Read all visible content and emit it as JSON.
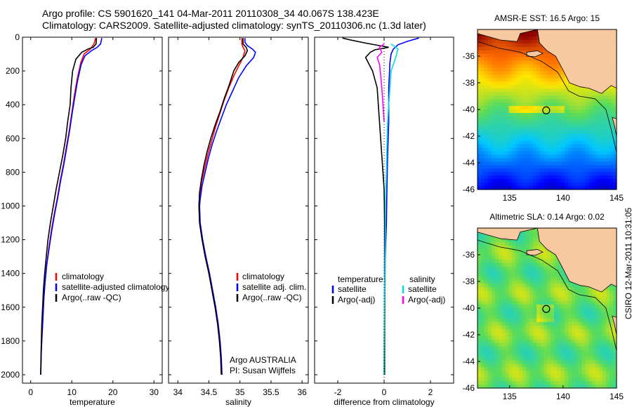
{
  "title_line1": "Argo profile: CS 5901620_141 04-Mar-2011 20110308_34 40.067S 138.423E",
  "title_line2": "Climatology: CARS2009. Satellite-adjusted climatology: synTS_20110306.nc (1.3d later)",
  "credit_line1": "Argo AUSTRALIA",
  "credit_line2": "PI: Susan Wijffels",
  "side_text": "CSIRO 12-Mar-2011 10:31:05",
  "colors": {
    "climatology": "#ff0000",
    "satellite": "#0000ff",
    "argo": "#000000",
    "sat_diff_sal": "#00dddd",
    "argo_diff_sal": "#ff00ff"
  },
  "chart_data": [
    {
      "type": "line",
      "id": "temperature",
      "xlabel": "temperature",
      "ylabel": "",
      "xlim": [
        -2,
        32
      ],
      "ylim": [
        2050,
        0
      ],
      "xticks": [
        0,
        10,
        20,
        30
      ],
      "yticks": [
        0,
        200,
        400,
        600,
        800,
        1000,
        1200,
        1400,
        1600,
        1800,
        2000
      ],
      "legend": [
        "climatology",
        "satellite-adjusted climatology",
        "Argo(..raw -QC)"
      ],
      "series": [
        {
          "name": "climatology",
          "color": "#ff0000",
          "points": [
            [
              15.8,
              5
            ],
            [
              15.4,
              40
            ],
            [
              14.5,
              70
            ],
            [
              13.0,
              100
            ],
            [
              12.2,
              150
            ],
            [
              11.3,
              250
            ],
            [
              10.6,
              350
            ],
            [
              10.0,
              450
            ],
            [
              9.4,
              550
            ],
            [
              8.7,
              650
            ],
            [
              8.0,
              750
            ],
            [
              7.2,
              850
            ],
            [
              6.5,
              950
            ],
            [
              5.7,
              1050
            ],
            [
              5.0,
              1150
            ],
            [
              4.4,
              1250
            ],
            [
              3.9,
              1350
            ],
            [
              3.5,
              1450
            ],
            [
              3.2,
              1550
            ],
            [
              3.0,
              1650
            ],
            [
              2.8,
              1750
            ],
            [
              2.6,
              1850
            ],
            [
              2.5,
              1950
            ],
            [
              2.45,
              2000
            ]
          ]
        },
        {
          "name": "satellite-adjusted climatology",
          "color": "#0000ff",
          "points": [
            [
              17.3,
              5
            ],
            [
              17.0,
              40
            ],
            [
              16.2,
              60
            ],
            [
              14.8,
              80
            ],
            [
              13.2,
              110
            ],
            [
              12.3,
              160
            ],
            [
              11.4,
              260
            ],
            [
              10.7,
              360
            ],
            [
              10.1,
              450
            ],
            [
              9.5,
              550
            ],
            [
              8.8,
              650
            ],
            [
              8.1,
              750
            ],
            [
              7.3,
              850
            ],
            [
              6.6,
              950
            ],
            [
              5.8,
              1050
            ],
            [
              5.1,
              1150
            ],
            [
              4.5,
              1250
            ],
            [
              3.9,
              1350
            ],
            [
              3.5,
              1450
            ],
            [
              3.2,
              1550
            ],
            [
              3.0,
              1650
            ],
            [
              2.8,
              1750
            ],
            [
              2.6,
              1850
            ],
            [
              2.5,
              1950
            ],
            [
              2.45,
              2000
            ]
          ]
        },
        {
          "name": "Argo(..raw -QC)",
          "color": "#000000",
          "points": [
            [
              16.0,
              5
            ],
            [
              15.9,
              40
            ],
            [
              15.2,
              60
            ],
            [
              14.0,
              70
            ],
            [
              12.4,
              90
            ],
            [
              11.0,
              130
            ],
            [
              10.2,
              200
            ],
            [
              9.8,
              300
            ],
            [
              9.6,
              400
            ],
            [
              9.0,
              500
            ],
            [
              8.5,
              600
            ],
            [
              7.8,
              700
            ],
            [
              7.0,
              800
            ],
            [
              6.2,
              900
            ],
            [
              5.5,
              1000
            ],
            [
              4.8,
              1100
            ],
            [
              4.2,
              1200
            ],
            [
              3.8,
              1300
            ],
            [
              3.4,
              1400
            ],
            [
              3.1,
              1500
            ],
            [
              2.9,
              1600
            ],
            [
              2.7,
              1700
            ],
            [
              2.6,
              1800
            ],
            [
              2.5,
              1900
            ],
            [
              2.45,
              2000
            ]
          ]
        }
      ]
    },
    {
      "type": "line",
      "id": "salinity",
      "xlabel": "salinity",
      "ylabel": "",
      "xlim": [
        33.85,
        36.1
      ],
      "ylim": [
        2050,
        0
      ],
      "xticks": [
        34,
        34.5,
        35,
        35.5,
        36
      ],
      "yticks": [
        0,
        200,
        400,
        600,
        800,
        1000,
        1200,
        1400,
        1600,
        1800,
        2000
      ],
      "legend": [
        "climatology",
        "satellite adj. clim.",
        "Argo(..raw -QC)"
      ],
      "series": [
        {
          "name": "climatology",
          "color": "#ff0000",
          "points": [
            [
              35.03,
              5
            ],
            [
              35.03,
              40
            ],
            [
              35.05,
              60
            ],
            [
              35.08,
              80
            ],
            [
              35.05,
              120
            ],
            [
              34.98,
              170
            ],
            [
              34.9,
              230
            ],
            [
              34.82,
              300
            ],
            [
              34.74,
              380
            ],
            [
              34.67,
              460
            ],
            [
              34.6,
              540
            ],
            [
              34.54,
              620
            ],
            [
              34.48,
              700
            ],
            [
              34.43,
              780
            ],
            [
              34.38,
              860
            ],
            [
              34.35,
              940
            ],
            [
              34.34,
              1000
            ],
            [
              34.35,
              1100
            ],
            [
              34.39,
              1200
            ],
            [
              34.44,
              1300
            ],
            [
              34.5,
              1400
            ],
            [
              34.55,
              1500
            ],
            [
              34.6,
              1600
            ],
            [
              34.64,
              1700
            ],
            [
              34.67,
              1800
            ],
            [
              34.69,
              1900
            ],
            [
              34.7,
              2000
            ]
          ]
        },
        {
          "name": "satellite adj. clim.",
          "color": "#0000ff",
          "points": [
            [
              35.08,
              5
            ],
            [
              35.08,
              30
            ],
            [
              35.12,
              50
            ],
            [
              35.2,
              70
            ],
            [
              35.25,
              90
            ],
            [
              35.22,
              120
            ],
            [
              35.1,
              170
            ],
            [
              34.98,
              240
            ],
            [
              34.88,
              320
            ],
            [
              34.78,
              400
            ],
            [
              34.7,
              480
            ],
            [
              34.62,
              560
            ],
            [
              34.55,
              640
            ],
            [
              34.49,
              720
            ],
            [
              34.44,
              800
            ],
            [
              34.39,
              880
            ],
            [
              34.36,
              960
            ],
            [
              34.35,
              1000
            ],
            [
              34.36,
              1100
            ],
            [
              34.4,
              1200
            ],
            [
              34.45,
              1300
            ],
            [
              34.51,
              1400
            ],
            [
              34.56,
              1500
            ],
            [
              34.61,
              1600
            ],
            [
              34.65,
              1700
            ],
            [
              34.68,
              1800
            ],
            [
              34.7,
              1900
            ],
            [
              34.71,
              2000
            ]
          ]
        },
        {
          "name": "Argo(..raw -QC)",
          "color": "#000000",
          "points": [
            [
              35.05,
              5
            ],
            [
              35.05,
              40
            ],
            [
              35.1,
              60
            ],
            [
              35.12,
              80
            ],
            [
              35.08,
              110
            ],
            [
              34.98,
              150
            ],
            [
              34.9,
              200
            ],
            [
              34.83,
              280
            ],
            [
              34.75,
              360
            ],
            [
              34.68,
              440
            ],
            [
              34.6,
              520
            ],
            [
              34.53,
              600
            ],
            [
              34.47,
              680
            ],
            [
              34.42,
              760
            ],
            [
              34.38,
              840
            ],
            [
              34.35,
              920
            ],
            [
              34.34,
              1000
            ],
            [
              34.35,
              1100
            ],
            [
              34.39,
              1200
            ],
            [
              34.44,
              1300
            ],
            [
              34.5,
              1400
            ],
            [
              34.55,
              1500
            ],
            [
              34.6,
              1600
            ],
            [
              34.64,
              1700
            ],
            [
              34.67,
              1800
            ],
            [
              34.69,
              1900
            ],
            [
              34.7,
              2000
            ]
          ]
        }
      ]
    },
    {
      "type": "line",
      "id": "difference",
      "xlabel": "difference from climatology",
      "ylabel": "",
      "xlim": [
        -3,
        3
      ],
      "ylim": [
        2050,
        0
      ],
      "xticks": [
        -2,
        0,
        2
      ],
      "yticks": [
        0,
        200,
        400,
        600,
        800,
        1000,
        1200,
        1400,
        1600,
        1800,
        2000
      ],
      "legend_title_left": "temperature",
      "legend_title_right": "salinity",
      "legend_left": [
        "satellite",
        "Argo(-adj)"
      ],
      "legend_right": [
        "satellite",
        "Argo(-adj)"
      ],
      "series": [
        {
          "name": "temperature satellite",
          "color": "#0000ff",
          "points": [
            [
              1.5,
              5
            ],
            [
              1.0,
              25
            ],
            [
              0.6,
              45
            ],
            [
              0.4,
              70
            ],
            [
              0.3,
              100
            ],
            [
              0.25,
              150
            ],
            [
              0.2,
              300
            ],
            [
              0.2,
              500
            ],
            [
              0.15,
              700
            ],
            [
              0.12,
              900
            ],
            [
              0.1,
              1100
            ],
            [
              0.05,
              1300
            ],
            [
              0.03,
              1500
            ],
            [
              0.02,
              1700
            ],
            [
              0.02,
              1900
            ],
            [
              0.02,
              2000
            ]
          ]
        },
        {
          "name": "temperature Argo(-adj)",
          "color": "#000000",
          "points": [
            [
              -1.8,
              5
            ],
            [
              -1.5,
              15
            ],
            [
              -0.8,
              35
            ],
            [
              -0.2,
              50
            ],
            [
              0.2,
              60
            ],
            [
              -0.4,
              75
            ],
            [
              -0.6,
              90
            ],
            [
              -0.8,
              120
            ],
            [
              -0.5,
              200
            ],
            [
              -0.3,
              300
            ],
            [
              -0.2,
              500
            ],
            [
              -0.1,
              700
            ],
            [
              0.0,
              900
            ],
            [
              0.02,
              1100
            ],
            [
              0.02,
              1300
            ],
            [
              0.02,
              1500
            ],
            [
              0.02,
              1700
            ],
            [
              0.02,
              1900
            ],
            [
              0.02,
              2000
            ]
          ]
        },
        {
          "name": "salinity satellite",
          "color": "#00dddd",
          "points": [
            [
              0.3,
              40
            ],
            [
              0.6,
              70
            ],
            [
              0.5,
              120
            ],
            [
              0.3,
              200
            ],
            [
              0.25,
              300
            ],
            [
              0.2,
              400
            ],
            [
              0.15,
              500
            ],
            [
              0.12,
              650
            ],
            [
              0.1,
              800
            ],
            [
              0.06,
              1000
            ],
            [
              0.05,
              1200
            ],
            [
              0.03,
              1400
            ],
            [
              0.01,
              1600
            ],
            [
              0.0,
              1800
            ],
            [
              -0.01,
              2000
            ]
          ]
        },
        {
          "name": "salinity Argo(-adj)",
          "color": "#ff00ff",
          "points": [
            [
              0.0,
              40
            ],
            [
              -0.2,
              60
            ],
            [
              -0.1,
              90
            ],
            [
              -0.3,
              120
            ],
            [
              -0.2,
              160
            ],
            [
              -0.15,
              220
            ],
            [
              -0.1,
              300
            ],
            [
              -0.05,
              400
            ],
            [
              0.0,
              500
            ]
          ]
        }
      ]
    },
    {
      "type": "heatmap",
      "id": "sst_map",
      "title": "AMSR-E SST: 16.5 Argo: 15",
      "xlim": [
        132,
        145
      ],
      "ylim": [
        -46,
        -34
      ],
      "xticks": [
        135,
        140,
        145
      ],
      "yticks": [
        -36,
        -38,
        -40,
        -42,
        -44,
        -46
      ],
      "marker": {
        "lon": 138.423,
        "lat": -40.067
      }
    },
    {
      "type": "heatmap",
      "id": "sla_map",
      "title": "Altimetric SLA: 0.14 Argo: 0.02",
      "xlim": [
        132,
        145
      ],
      "ylim": [
        -46,
        -34
      ],
      "xticks": [
        135,
        140,
        145
      ],
      "yticks": [
        -36,
        -38,
        -40,
        -42,
        -44,
        -46
      ],
      "marker": {
        "lon": 138.423,
        "lat": -40.067
      }
    }
  ]
}
